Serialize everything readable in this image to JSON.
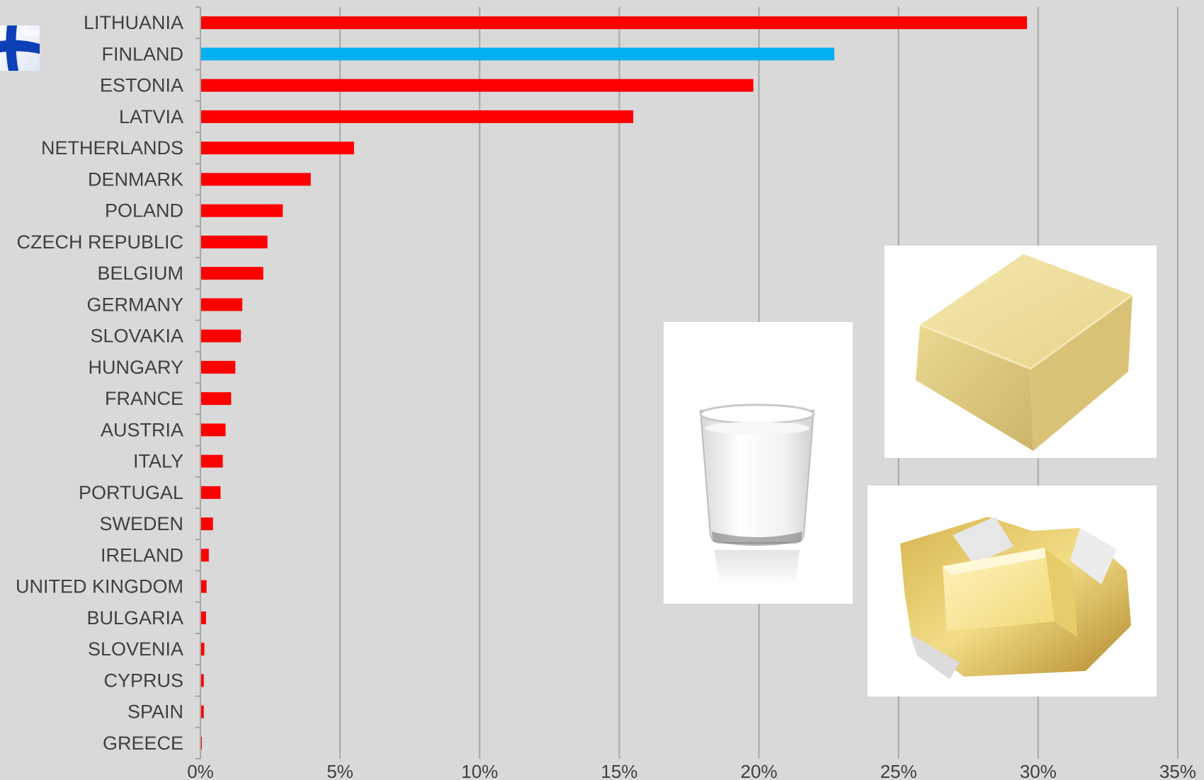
{
  "colors": {
    "background": "#d9d9d9",
    "bar_default": "#ff0000",
    "bar_highlight": "#00b0f0",
    "gridline": "#a6a6a6",
    "text": "#404040"
  },
  "highlight_country": "FINLAND",
  "icons": {
    "flag": "finland-flag-icon",
    "milk": "milk-glass-icon",
    "cheese": "cheese-block-icon",
    "butter": "butter-foil-icon"
  },
  "chart_data": {
    "type": "bar",
    "orientation": "horizontal",
    "title": "",
    "xlabel": "",
    "ylabel": "",
    "categories": [
      "LITHUANIA",
      "FINLAND",
      "ESTONIA",
      "LATVIA",
      "NETHERLANDS",
      "DENMARK",
      "POLAND",
      "CZECH REPUBLIC",
      "BELGIUM",
      "GERMANY",
      "SLOVAKIA",
      "HUNGARY",
      "FRANCE",
      "AUSTRIA",
      "ITALY",
      "PORTUGAL",
      "SWEDEN",
      "IRELAND",
      "UNITED KINGDOM",
      "BULGARIA",
      "SLOVENIA",
      "CYPRUS",
      "SPAIN",
      "GREECE"
    ],
    "values": [
      29.6,
      22.7,
      19.8,
      15.5,
      5.5,
      3.95,
      2.95,
      2.4,
      2.25,
      1.5,
      1.45,
      1.25,
      1.1,
      0.9,
      0.8,
      0.72,
      0.45,
      0.3,
      0.22,
      0.2,
      0.14,
      0.12,
      0.12,
      0.05
    ],
    "xlim": [
      0,
      35
    ],
    "xticks": [
      0,
      5,
      10,
      15,
      20,
      25,
      30,
      35
    ],
    "xtick_labels": [
      "0%",
      "5%",
      "10%",
      "15%",
      "20%",
      "25%",
      "30%",
      "35%"
    ],
    "grid": "vertical",
    "legend": "none"
  }
}
